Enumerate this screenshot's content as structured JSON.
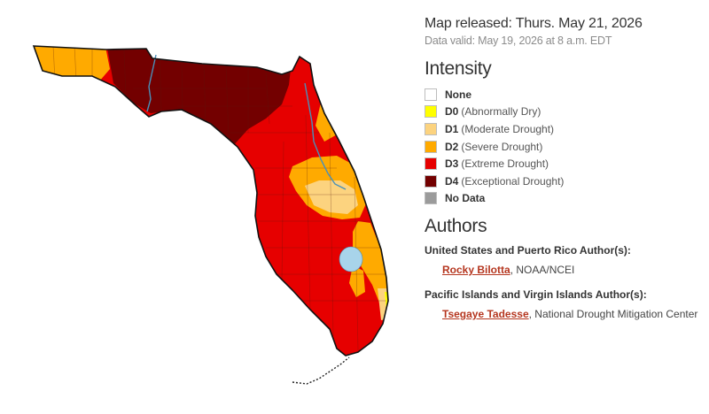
{
  "header": {
    "released": "Map released: Thurs. May 21, 2026",
    "valid": "Data valid: May 19, 2026 at 8 a.m. EDT"
  },
  "intensity": {
    "title": "Intensity",
    "items": [
      {
        "level": "None",
        "desc": "",
        "color": "#ffffff"
      },
      {
        "level": "D0",
        "desc": "(Abnormally Dry)",
        "color": "#ffff00"
      },
      {
        "level": "D1",
        "desc": "(Moderate Drought)",
        "color": "#fcd37f"
      },
      {
        "level": "D2",
        "desc": "(Severe Drought)",
        "color": "#ffaa00"
      },
      {
        "level": "D3",
        "desc": "(Extreme Drought)",
        "color": "#e60000"
      },
      {
        "level": "D4",
        "desc": "(Exceptional Drought)",
        "color": "#730000"
      },
      {
        "level": "No Data",
        "desc": "",
        "color": "#9b9b9b"
      }
    ]
  },
  "authors": {
    "title": "Authors",
    "groups": [
      {
        "label": "United States and Puerto Rico Author(s):",
        "name": "Rocky Bilotta",
        "affiliation": ", NOAA/NCEI"
      },
      {
        "label": "Pacific Islands and Virgin Islands Author(s):",
        "name": "Tsegaye Tadesse",
        "affiliation": ", National Drought Mitigation Center"
      }
    ]
  },
  "map": {
    "region": "Florida",
    "water_color": "#a8d4ea"
  }
}
